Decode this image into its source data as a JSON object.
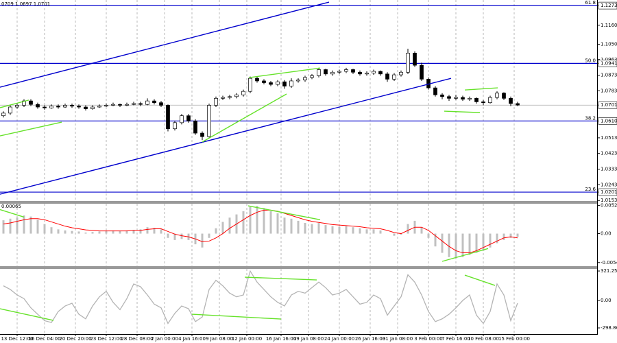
{
  "chart_data": [
    {
      "type": "candlestick",
      "header": "0709 1.0697 1.0701",
      "xlim": [
        -0.5,
        86.5
      ],
      "xticks": [
        {
          "value": 2,
          "label": "13 Dec 12:00"
        },
        {
          "value": 6,
          "label": "16 Dec 04:00"
        },
        {
          "value": 10.5,
          "label": "20 Dec 20:00"
        },
        {
          "value": 15,
          "label": "23 Dec 12:00"
        },
        {
          "value": 19.5,
          "label": "28 Dec 08:00"
        },
        {
          "value": 23.5,
          "label": "2 Jan 00:00"
        },
        {
          "value": 27.5,
          "label": "4 Jan 16:00"
        },
        {
          "value": 31.5,
          "label": "9 Jan 08:00"
        },
        {
          "value": 35.5,
          "label": "12 Jan 00:00"
        },
        {
          "value": 40.5,
          "label": "16 Jan 16:00"
        },
        {
          "value": 44.5,
          "label": "19 Jan 08:00"
        },
        {
          "value": 49,
          "label": "24 Jan 00:00"
        },
        {
          "value": 53.5,
          "label": "26 Jan 16:00"
        },
        {
          "value": 57.5,
          "label": "31 Jan 08:00"
        },
        {
          "value": 62,
          "label": "3 Feb 00:00"
        },
        {
          "value": 66,
          "label": "7 Feb 16:00"
        },
        {
          "value": 70,
          "label": "10 Feb 08:00"
        },
        {
          "value": 74.5,
          "label": "15 Feb 00:00"
        }
      ],
      "grid": true,
      "ylim": [
        1.015,
        1.1305
      ],
      "yticks": [
        1.1273,
        {
          "value": 1.116,
          "label": "1.1160"
        },
        {
          "value": 1.105,
          "label": "1.1050"
        },
        1.0963,
        1.0941,
        1.0873,
        1.0783,
        1.0701,
        {
          "value": 1.061,
          "label": "1.0610"
        },
        1.0513,
        1.0423,
        1.0333,
        1.0243,
        1.0201,
        1.0153
      ],
      "levels": [
        {
          "value": 1.1273,
          "label": "61.8"
        },
        {
          "value": 1.0941,
          "label": "50.0"
        },
        {
          "value": 1.061,
          "label": "38.2"
        },
        {
          "value": 1.0201,
          "label": "23.6"
        }
      ],
      "level_color": "#0000cd",
      "current_price": 1.0701,
      "up_color": "#ffffff",
      "down_color": "#000000",
      "wick_color": "#000000",
      "open": [
        1.064,
        1.0655,
        1.069,
        1.07,
        1.0725,
        1.0705,
        1.069,
        1.0685,
        1.0695,
        1.069,
        1.07,
        1.0695,
        1.069,
        1.068,
        1.069,
        1.0695,
        1.07,
        1.0705,
        1.07,
        1.0705,
        1.071,
        1.0705,
        1.0725,
        1.0715,
        1.07,
        1.0565,
        1.06,
        1.064,
        1.061,
        1.054,
        1.052,
        1.07,
        1.074,
        1.0745,
        1.075,
        1.076,
        1.078,
        1.0855,
        1.084,
        1.083,
        1.082,
        1.0835,
        1.081,
        1.084,
        1.0845,
        1.086,
        1.087,
        1.0905,
        1.088,
        1.089,
        1.0895,
        1.0905,
        1.089,
        1.088,
        1.0885,
        1.0895,
        1.088,
        1.085,
        1.0875,
        1.089,
        1.1,
        1.093,
        1.085,
        1.08,
        1.076,
        1.075,
        1.074,
        1.0745,
        1.0735,
        1.074,
        1.072,
        1.0715,
        1.0745,
        1.077,
        1.074,
        1.071
      ],
      "high": [
        1.0665,
        1.07,
        1.071,
        1.0735,
        1.0735,
        1.0715,
        1.07,
        1.0705,
        1.0705,
        1.071,
        1.071,
        1.0705,
        1.07,
        1.07,
        1.0705,
        1.071,
        1.0715,
        1.071,
        1.0715,
        1.072,
        1.072,
        1.074,
        1.0735,
        1.0725,
        1.0705,
        1.061,
        1.065,
        1.065,
        1.062,
        1.055,
        1.071,
        1.075,
        1.0755,
        1.076,
        1.077,
        1.079,
        1.0865,
        1.0865,
        1.085,
        1.084,
        1.0845,
        1.0845,
        1.0855,
        1.0855,
        1.087,
        1.088,
        1.0915,
        1.091,
        1.09,
        1.0905,
        1.0915,
        1.091,
        1.09,
        1.0895,
        1.0905,
        1.09,
        1.089,
        1.0885,
        1.09,
        1.1025,
        1.101,
        1.0945,
        1.086,
        1.081,
        1.077,
        1.076,
        1.076,
        1.0755,
        1.075,
        1.0745,
        1.073,
        1.0755,
        1.078,
        1.0775,
        1.075,
        1.072
      ],
      "low": [
        1.063,
        1.0645,
        1.068,
        1.069,
        1.0695,
        1.068,
        1.0675,
        1.068,
        1.068,
        1.0685,
        1.0685,
        1.068,
        1.067,
        1.0675,
        1.0685,
        1.069,
        1.0695,
        1.069,
        1.0695,
        1.07,
        1.0695,
        1.07,
        1.0705,
        1.069,
        1.055,
        1.0555,
        1.059,
        1.06,
        1.053,
        1.05,
        1.0515,
        1.069,
        1.073,
        1.0735,
        1.074,
        1.075,
        1.077,
        1.083,
        1.082,
        1.081,
        1.081,
        1.0795,
        1.08,
        1.083,
        1.0835,
        1.085,
        1.086,
        1.087,
        1.087,
        1.088,
        1.0885,
        1.088,
        1.087,
        1.087,
        1.0875,
        1.087,
        1.0835,
        1.084,
        1.0865,
        1.088,
        1.092,
        1.084,
        1.079,
        1.075,
        1.0735,
        1.0725,
        1.073,
        1.0725,
        1.0725,
        1.071,
        1.07,
        1.071,
        1.0735,
        1.073,
        1.0695,
        1.0695
      ],
      "close": [
        1.0655,
        1.069,
        1.07,
        1.0725,
        1.0705,
        1.069,
        1.0685,
        1.0695,
        1.069,
        1.07,
        1.0695,
        1.069,
        1.068,
        1.069,
        1.0695,
        1.07,
        1.0705,
        1.07,
        1.0705,
        1.071,
        1.0705,
        1.0725,
        1.0715,
        1.07,
        1.0565,
        1.06,
        1.064,
        1.061,
        1.054,
        1.052,
        1.07,
        1.074,
        1.0745,
        1.075,
        1.076,
        1.078,
        1.0855,
        1.084,
        1.083,
        1.082,
        1.0835,
        1.081,
        1.084,
        1.0845,
        1.086,
        1.087,
        1.0905,
        1.088,
        1.089,
        1.0895,
        1.0905,
        1.089,
        1.088,
        1.0885,
        1.0895,
        1.088,
        1.085,
        1.0875,
        1.089,
        1.1,
        1.093,
        1.085,
        1.08,
        1.076,
        1.075,
        1.074,
        1.0745,
        1.0735,
        1.074,
        1.072,
        1.0715,
        1.0745,
        1.077,
        1.074,
        1.071,
        1.0701
      ],
      "trendlines": [
        {
          "color": "#0000cd",
          "x": [
            -0.5,
            47.5
          ],
          "y": [
            1.0804,
            1.1293
          ]
        },
        {
          "color": "#0000cd",
          "x": [
            -0.5,
            65.3
          ],
          "y": [
            1.0189,
            1.0855
          ]
        },
        {
          "color": "#66e22a",
          "x": [
            -0.5,
            3.7
          ],
          "y": [
            1.0686,
            1.073
          ]
        },
        {
          "color": "#66e22a",
          "x": [
            -0.5,
            8.5
          ],
          "y": [
            1.0524,
            1.0603
          ]
        },
        {
          "color": "#66e22a",
          "x": [
            29,
            41.3
          ],
          "y": [
            1.0489,
            1.0765
          ]
        },
        {
          "color": "#66e22a",
          "x": [
            35.8,
            46.2
          ],
          "y": [
            1.0859,
            1.0914
          ]
        },
        {
          "color": "#66e22a",
          "x": [
            64.3,
            69.5
          ],
          "y": [
            1.0666,
            1.0658
          ]
        },
        {
          "color": "#66e22a",
          "x": [
            67.3,
            72.1
          ],
          "y": [
            1.0788,
            1.08
          ]
        }
      ]
    },
    {
      "type": "macd",
      "header": "0.00065",
      "ylim": [
        -0.0061,
        0.0056
      ],
      "yticks": [
        0.00526,
        {
          "value": 0,
          "label": "0.00"
        },
        -0.00543
      ],
      "hist_color": "#c0c0c0",
      "signal_color": "#ff0000",
      "values": [
        0.0025,
        0.0028,
        0.003,
        0.0034,
        0.0032,
        0.0026,
        0.0018,
        0.0012,
        0.0008,
        0.0006,
        0.0005,
        0.0004,
        0.0002,
        0.0003,
        0.0004,
        0.0005,
        0.0006,
        0.0005,
        0.0006,
        0.0007,
        0.0008,
        0.0012,
        0.0011,
        0.0008,
        -0.0008,
        -0.0012,
        -0.001,
        -0.0012,
        -0.002,
        -0.0026,
        -0.0008,
        0.001,
        0.0022,
        0.003,
        0.0036,
        0.0042,
        0.005,
        0.0052,
        0.0048,
        0.0042,
        0.0038,
        0.003,
        0.0028,
        0.0024,
        0.002,
        0.0018,
        0.002,
        0.0016,
        0.0014,
        0.0013,
        0.0014,
        0.0012,
        0.001,
        0.0008,
        0.0008,
        0.0006,
        0.0,
        -0.0004,
        -0.0002,
        0.0018,
        0.0024,
        0.0012,
        -0.0008,
        -0.0024,
        -0.0036,
        -0.0044,
        -0.0046,
        -0.0044,
        -0.004,
        -0.0036,
        -0.0032,
        -0.0026,
        -0.0018,
        -0.0012,
        -0.0008,
        -0.0006
      ],
      "signal": [
        0.0018,
        0.002,
        0.0023,
        0.0026,
        0.0028,
        0.0028,
        0.0026,
        0.0022,
        0.0018,
        0.0014,
        0.0011,
        0.0009,
        0.0007,
        0.0006,
        0.0005,
        0.0005,
        0.0005,
        0.0005,
        0.0005,
        0.0006,
        0.0006,
        0.0008,
        0.0009,
        0.0009,
        0.0004,
        -0.0001,
        -0.0004,
        -0.0006,
        -0.001,
        -0.0015,
        -0.0014,
        -0.0008,
        0.0,
        0.001,
        0.0018,
        0.0026,
        0.0034,
        0.004,
        0.0044,
        0.0044,
        0.0042,
        0.0038,
        0.0034,
        0.003,
        0.0026,
        0.0023,
        0.0021,
        0.0019,
        0.0017,
        0.0016,
        0.0015,
        0.0014,
        0.0013,
        0.0011,
        0.001,
        0.0009,
        0.0006,
        0.0002,
        0.0,
        0.0006,
        0.0012,
        0.0012,
        0.0006,
        -0.0004,
        -0.0014,
        -0.0024,
        -0.0032,
        -0.0036,
        -0.0036,
        -0.0032,
        -0.0026,
        -0.002,
        -0.0014,
        -0.0008,
        -0.0006,
        -0.0008
      ],
      "trendlines": [
        {
          "color": "#66e22a",
          "x": [
            -0.5,
            3
          ],
          "y": [
            0.0045,
            0.0031
          ]
        },
        {
          "color": "#66e22a",
          "x": [
            35.7,
            46.2
          ],
          "y": [
            0.0052,
            0.0026
          ]
        },
        {
          "color": "#66e22a",
          "x": [
            64,
            70.7
          ],
          "y": [
            -0.0052,
            -0.0028
          ]
        }
      ]
    },
    {
      "type": "line",
      "ylim": [
        -366,
        344
      ],
      "yticks": [
        321.2557,
        {
          "value": 0,
          "label": "0.00"
        },
        -298.8612
      ],
      "color": "#b4b4b4",
      "values": [
        160,
        120,
        60,
        20,
        -80,
        -150,
        -220,
        -240,
        -120,
        -60,
        -30,
        -150,
        -200,
        -60,
        40,
        100,
        -20,
        -100,
        20,
        180,
        150,
        60,
        -40,
        -80,
        -250,
        -140,
        -60,
        -90,
        -230,
        -180,
        120,
        220,
        160,
        80,
        40,
        60,
        320,
        200,
        120,
        40,
        -20,
        -60,
        60,
        100,
        80,
        140,
        200,
        140,
        60,
        80,
        120,
        40,
        -40,
        -20,
        60,
        20,
        -160,
        -60,
        40,
        280,
        200,
        60,
        -120,
        -230,
        -200,
        -150,
        -80,
        0,
        60,
        -160,
        -250,
        -120,
        180,
        60,
        -220,
        -30
      ],
      "trendlines": [
        {
          "color": "#66e22a",
          "x": [
            -0.5,
            7.3
          ],
          "y": [
            -90,
            -217
          ]
        },
        {
          "color": "#66e22a",
          "x": [
            27.5,
            40.5
          ],
          "y": [
            -150,
            -202
          ]
        },
        {
          "color": "#66e22a",
          "x": [
            35.2,
            45.7
          ],
          "y": [
            254,
            224
          ]
        },
        {
          "color": "#66e22a",
          "x": [
            67.3,
            71.7
          ],
          "y": [
            276,
            164
          ]
        }
      ]
    }
  ]
}
